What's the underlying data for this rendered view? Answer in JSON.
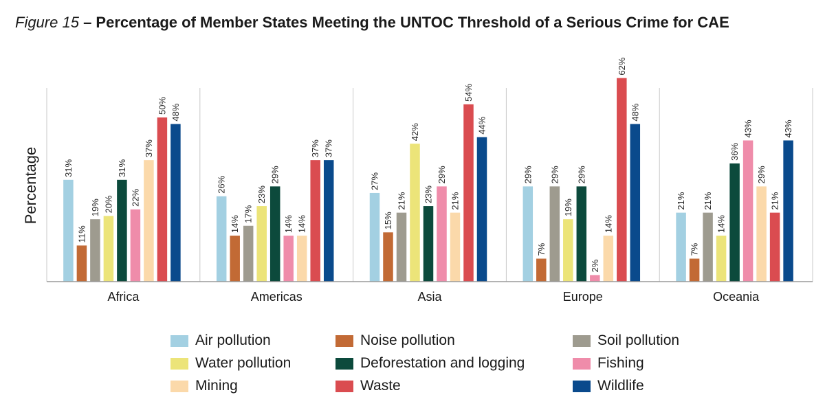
{
  "title": {
    "figure_label": "Figure 15",
    "text": " – Percentage of Member States Meeting the UNTOC Threshold of a Serious Crime for CAE"
  },
  "chart_data": {
    "type": "bar",
    "title": "Figure 15 – Percentage of Member States Meeting the UNTOC Threshold of a Serious Crime for CAE",
    "xlabel": "",
    "ylabel": "Percentage",
    "ylim": [
      0,
      70
    ],
    "grid": false,
    "legend_position": "bottom",
    "categories": [
      "Africa",
      "Americas",
      "Asia",
      "Europe",
      "Oceania"
    ],
    "series": [
      {
        "name": "Air pollution",
        "color": "#a3d0e2",
        "values": [
          31,
          26,
          27,
          29,
          21
        ]
      },
      {
        "name": "Noise pollution",
        "color": "#c26a35",
        "values": [
          11,
          14,
          15,
          7,
          7
        ]
      },
      {
        "name": "Soil pollution",
        "color": "#9e9b8f",
        "values": [
          19,
          17,
          21,
          29,
          21
        ]
      },
      {
        "name": "Water pollution",
        "color": "#ece479",
        "values": [
          20,
          23,
          42,
          19,
          14
        ]
      },
      {
        "name": "Deforestation and logging",
        "color": "#0c4a3c",
        "values": [
          31,
          29,
          23,
          29,
          36
        ]
      },
      {
        "name": "Fishing",
        "color": "#ef8caa",
        "values": [
          22,
          14,
          29,
          2,
          43
        ]
      },
      {
        "name": "Mining",
        "color": "#fbd9aa",
        "values": [
          37,
          14,
          21,
          14,
          29
        ]
      },
      {
        "name": "Waste",
        "color": "#da4c50",
        "values": [
          50,
          37,
          54,
          62,
          21
        ]
      },
      {
        "name": "Wildlife",
        "color": "#0a4a8c",
        "values": [
          48,
          37,
          44,
          48,
          43
        ]
      }
    ],
    "value_suffix": "%"
  },
  "legend": {
    "items": [
      {
        "label": "Air pollution",
        "color": "#a3d0e2"
      },
      {
        "label": "Noise pollution",
        "color": "#c26a35"
      },
      {
        "label": "Soil pollution",
        "color": "#9e9b8f"
      },
      {
        "label": "Water pollution",
        "color": "#ece479"
      },
      {
        "label": "Deforestation and logging",
        "color": "#0c4a3c"
      },
      {
        "label": "Fishing",
        "color": "#ef8caa"
      },
      {
        "label": "Mining",
        "color": "#fbd9aa"
      },
      {
        "label": "Waste",
        "color": "#da4c50"
      },
      {
        "label": "Wildlife",
        "color": "#0a4a8c"
      }
    ]
  }
}
